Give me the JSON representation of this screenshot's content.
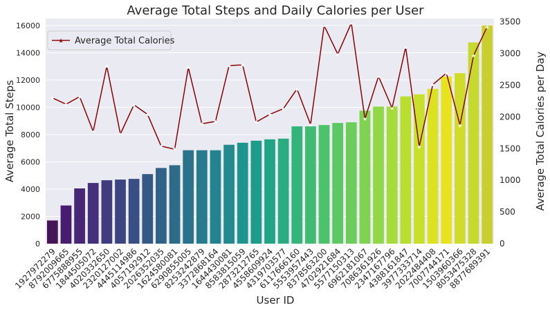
{
  "chart_data": {
    "type": "bar+line",
    "title": "Average Total Steps and Daily Calories per User",
    "xlabel": "User ID",
    "ylabel_left": "Average Total Steps",
    "ylabel_right": "Average Total Calories per Day",
    "ylim_left": [
      0,
      16500
    ],
    "ylim_right": [
      0,
      3550
    ],
    "yticks_left": [
      0,
      2000,
      4000,
      6000,
      8000,
      10000,
      12000,
      14000,
      16000
    ],
    "yticks_right": [
      0,
      500,
      1000,
      1500,
      2000,
      2500,
      3000,
      3500
    ],
    "grid": true,
    "legend_position": "top-left",
    "categories": [
      "1927972279",
      "8792009665",
      "6775888955",
      "1844505072",
      "4020332650",
      "2320127002",
      "4445114986",
      "4057192912",
      "2026352035",
      "1624580081",
      "6290855005",
      "8253242879",
      "3372868164",
      "1644430081",
      "8583815059",
      "2873212765",
      "4558609924",
      "4319703577",
      "6117666160",
      "5553957443",
      "8378563200",
      "4702921684",
      "5577150313",
      "6962181067",
      "7086361926",
      "2347167796",
      "4388161847",
      "3977333714",
      "2022484408",
      "7007744171",
      "1503960366",
      "8053475328",
      "8877689391"
    ],
    "series": [
      {
        "name": "",
        "kind": "bar",
        "axis": "left",
        "values": [
          1700,
          2800,
          4050,
          4450,
          4650,
          4700,
          4750,
          5100,
          5550,
          5750,
          6850,
          6850,
          6850,
          7250,
          7400,
          7550,
          7650,
          7700,
          8600,
          8600,
          8700,
          8850,
          8900,
          9750,
          10050,
          10050,
          10800,
          10950,
          11350,
          12250,
          12500,
          14750,
          16000
        ],
        "colors": [
          "#461556",
          "#481c6e",
          "#472676",
          "#45307b",
          "#413b7f",
          "#3d4581",
          "#394f84",
          "#355985",
          "#306287",
          "#2d6b89",
          "#2a738b",
          "#267b8d",
          "#23838f",
          "#218b8e",
          "#1f938d",
          "#1e9c8a",
          "#21a485",
          "#28ac80",
          "#33b47a",
          "#3fbc72",
          "#4cc26b",
          "#5cc863",
          "#6dcd5b",
          "#7fd350",
          "#92d846",
          "#a5db3b",
          "#b8de30",
          "#c9e02a",
          "#dae222",
          "#e7e41f",
          "#d0dc2a",
          "#c6d92e",
          "#c9cf2f"
        ]
      },
      {
        "name": "Average Total Calories",
        "kind": "line",
        "axis": "right",
        "color": "#8b0000",
        "values": [
          2300,
          2200,
          2320,
          1770,
          2800,
          1730,
          2190,
          2040,
          1540,
          1490,
          2780,
          1890,
          1930,
          2810,
          2820,
          1920,
          2040,
          2130,
          2440,
          1880,
          3440,
          2990,
          3480,
          1970,
          2640,
          2140,
          3100,
          1530,
          2510,
          2690,
          1870,
          2970,
          3420
        ]
      }
    ]
  }
}
